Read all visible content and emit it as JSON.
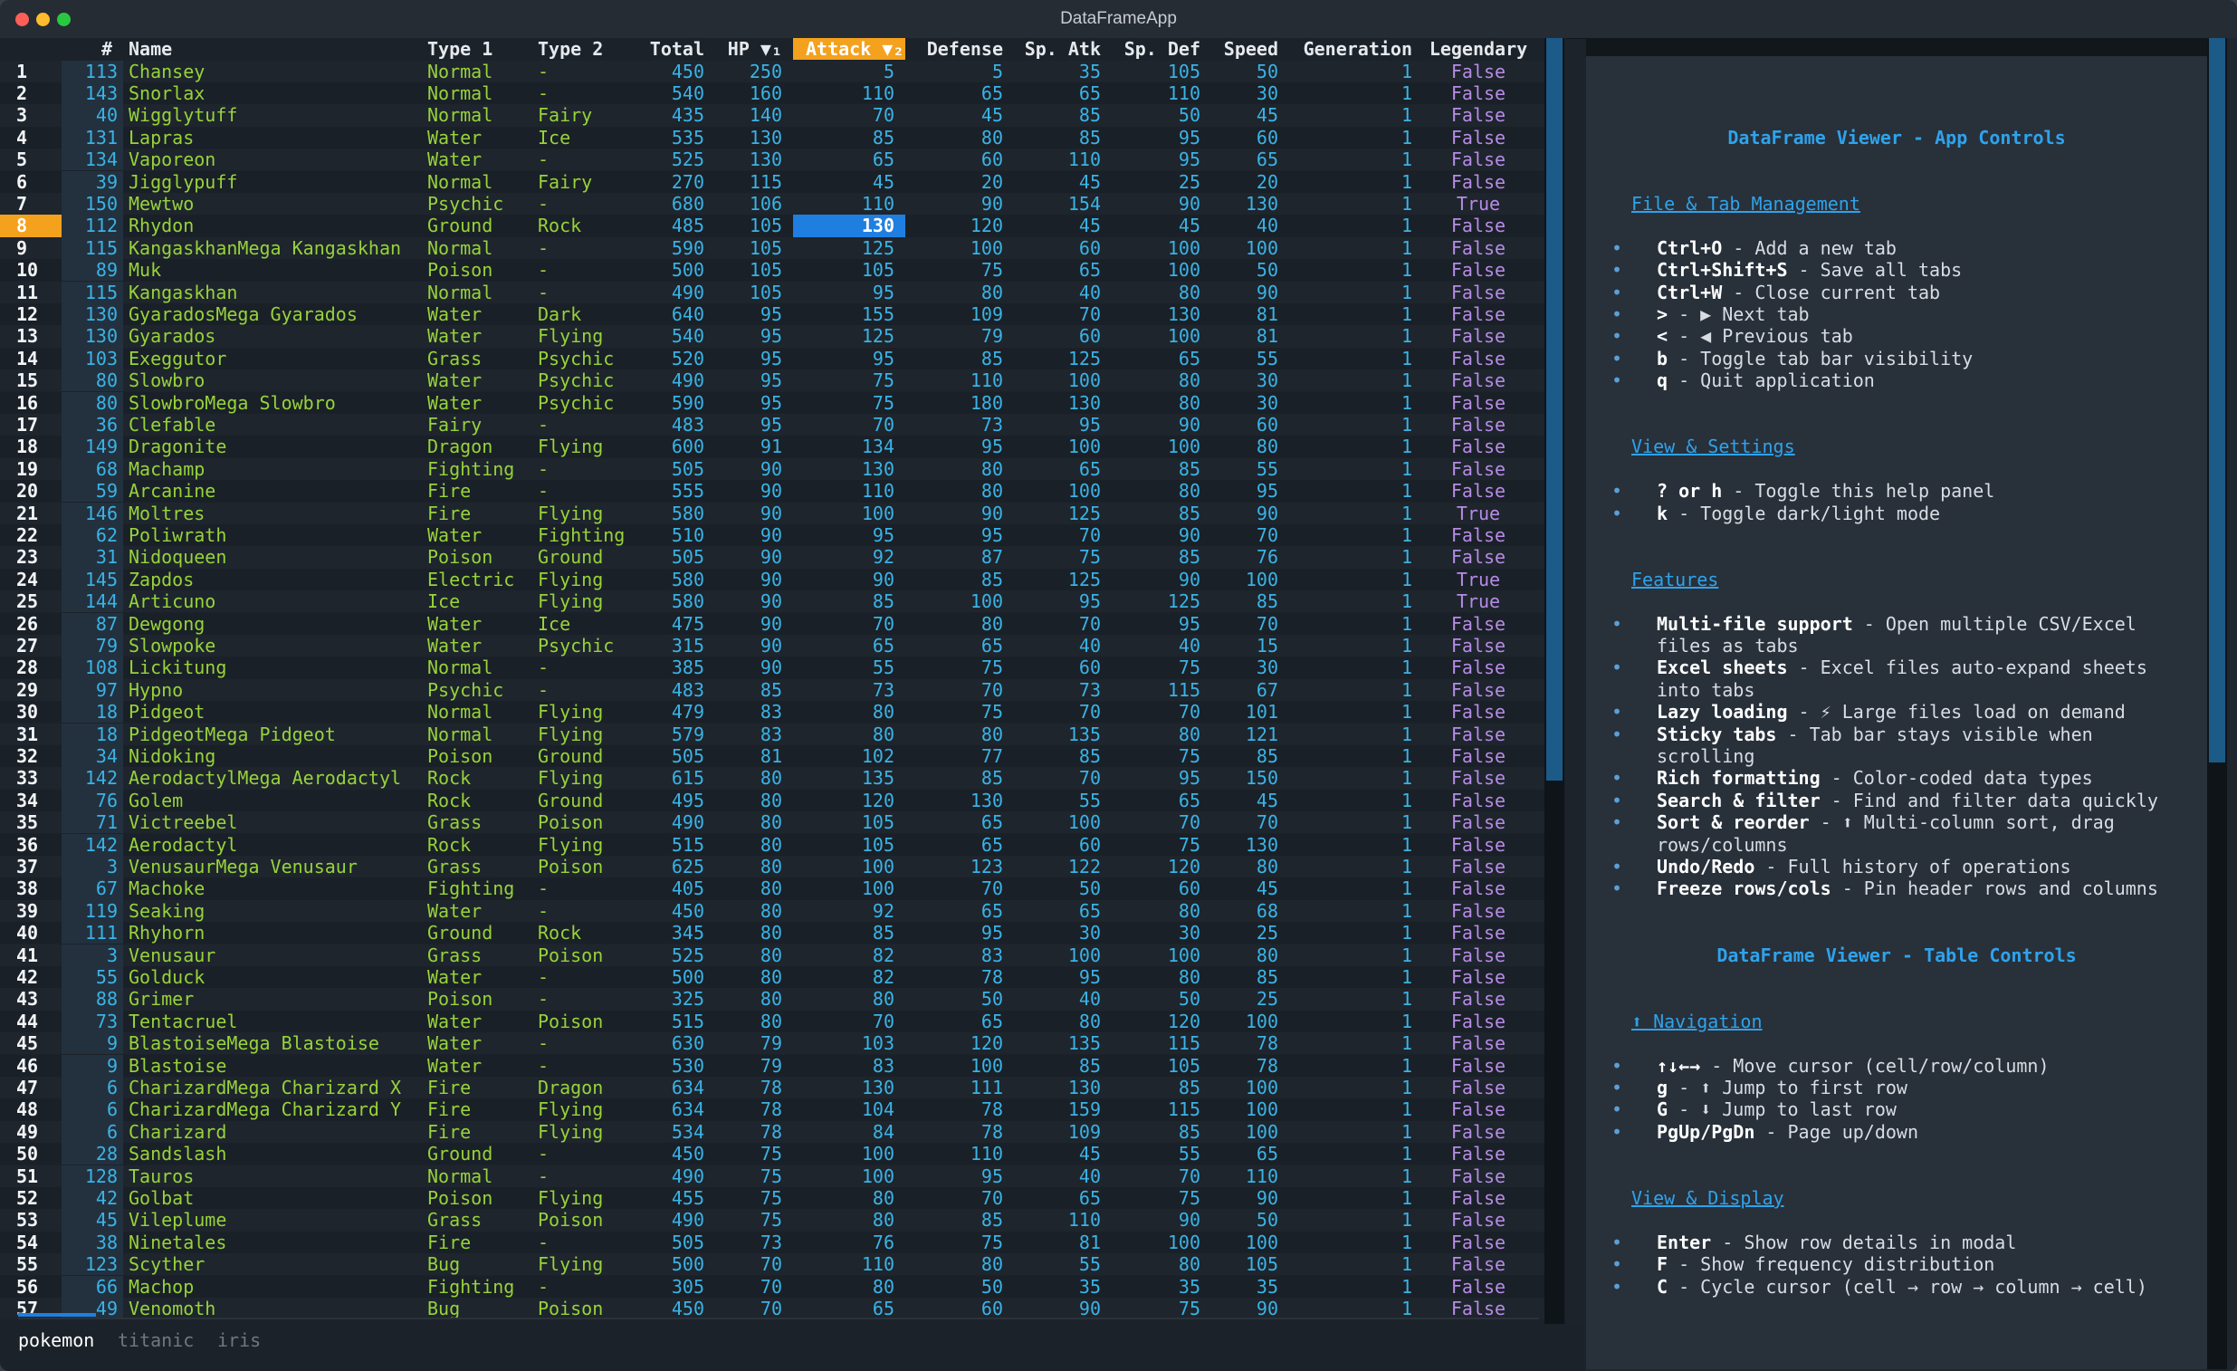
{
  "window": {
    "title": "DataFrameApp"
  },
  "table": {
    "columns": [
      {
        "key": "idx",
        "label": "#"
      },
      {
        "key": "name",
        "label": "Name"
      },
      {
        "key": "type1",
        "label": "Type 1"
      },
      {
        "key": "type2",
        "label": "Type 2"
      },
      {
        "key": "total",
        "label": "Total"
      },
      {
        "key": "hp",
        "label": "HP ▼₁"
      },
      {
        "key": "attack",
        "label": "Attack ▼₂"
      },
      {
        "key": "defense",
        "label": "Defense"
      },
      {
        "key": "spatk",
        "label": "Sp. Atk"
      },
      {
        "key": "spdef",
        "label": "Sp. Def"
      },
      {
        "key": "speed",
        "label": "Speed"
      },
      {
        "key": "generation",
        "label": "Generation"
      },
      {
        "key": "legendary",
        "label": "Legendary"
      }
    ],
    "sorted_column": "attack",
    "cursor_row": 8,
    "rows": [
      [
        "1",
        "113",
        "Chansey",
        "Normal",
        "-",
        "450",
        "250",
        "5",
        "5",
        "35",
        "105",
        "50",
        "1",
        "False"
      ],
      [
        "2",
        "143",
        "Snorlax",
        "Normal",
        "-",
        "540",
        "160",
        "110",
        "65",
        "65",
        "110",
        "30",
        "1",
        "False"
      ],
      [
        "3",
        "40",
        "Wigglytuff",
        "Normal",
        "Fairy",
        "435",
        "140",
        "70",
        "45",
        "85",
        "50",
        "45",
        "1",
        "False"
      ],
      [
        "4",
        "131",
        "Lapras",
        "Water",
        "Ice",
        "535",
        "130",
        "85",
        "80",
        "85",
        "95",
        "60",
        "1",
        "False"
      ],
      [
        "5",
        "134",
        "Vaporeon",
        "Water",
        "-",
        "525",
        "130",
        "65",
        "60",
        "110",
        "95",
        "65",
        "1",
        "False"
      ],
      [
        "6",
        "39",
        "Jigglypuff",
        "Normal",
        "Fairy",
        "270",
        "115",
        "45",
        "20",
        "45",
        "25",
        "20",
        "1",
        "False"
      ],
      [
        "7",
        "150",
        "Mewtwo",
        "Psychic",
        "-",
        "680",
        "106",
        "110",
        "90",
        "154",
        "90",
        "130",
        "1",
        "True"
      ],
      [
        "8",
        "112",
        "Rhydon",
        "Ground",
        "Rock",
        "485",
        "105",
        "130",
        "120",
        "45",
        "45",
        "40",
        "1",
        "False"
      ],
      [
        "9",
        "115",
        "KangaskhanMega Kangaskhan",
        "Normal",
        "-",
        "590",
        "105",
        "125",
        "100",
        "60",
        "100",
        "100",
        "1",
        "False"
      ],
      [
        "10",
        "89",
        "Muk",
        "Poison",
        "-",
        "500",
        "105",
        "105",
        "75",
        "65",
        "100",
        "50",
        "1",
        "False"
      ],
      [
        "11",
        "115",
        "Kangaskhan",
        "Normal",
        "-",
        "490",
        "105",
        "95",
        "80",
        "40",
        "80",
        "90",
        "1",
        "False"
      ],
      [
        "12",
        "130",
        "GyaradosMega Gyarados",
        "Water",
        "Dark",
        "640",
        "95",
        "155",
        "109",
        "70",
        "130",
        "81",
        "1",
        "False"
      ],
      [
        "13",
        "130",
        "Gyarados",
        "Water",
        "Flying",
        "540",
        "95",
        "125",
        "79",
        "60",
        "100",
        "81",
        "1",
        "False"
      ],
      [
        "14",
        "103",
        "Exeggutor",
        "Grass",
        "Psychic",
        "520",
        "95",
        "95",
        "85",
        "125",
        "65",
        "55",
        "1",
        "False"
      ],
      [
        "15",
        "80",
        "Slowbro",
        "Water",
        "Psychic",
        "490",
        "95",
        "75",
        "110",
        "100",
        "80",
        "30",
        "1",
        "False"
      ],
      [
        "16",
        "80",
        "SlowbroMega Slowbro",
        "Water",
        "Psychic",
        "590",
        "95",
        "75",
        "180",
        "130",
        "80",
        "30",
        "1",
        "False"
      ],
      [
        "17",
        "36",
        "Clefable",
        "Fairy",
        "-",
        "483",
        "95",
        "70",
        "73",
        "95",
        "90",
        "60",
        "1",
        "False"
      ],
      [
        "18",
        "149",
        "Dragonite",
        "Dragon",
        "Flying",
        "600",
        "91",
        "134",
        "95",
        "100",
        "100",
        "80",
        "1",
        "False"
      ],
      [
        "19",
        "68",
        "Machamp",
        "Fighting",
        "-",
        "505",
        "90",
        "130",
        "80",
        "65",
        "85",
        "55",
        "1",
        "False"
      ],
      [
        "20",
        "59",
        "Arcanine",
        "Fire",
        "-",
        "555",
        "90",
        "110",
        "80",
        "100",
        "80",
        "95",
        "1",
        "False"
      ],
      [
        "21",
        "146",
        "Moltres",
        "Fire",
        "Flying",
        "580",
        "90",
        "100",
        "90",
        "125",
        "85",
        "90",
        "1",
        "True"
      ],
      [
        "22",
        "62",
        "Poliwrath",
        "Water",
        "Fighting",
        "510",
        "90",
        "95",
        "95",
        "70",
        "90",
        "70",
        "1",
        "False"
      ],
      [
        "23",
        "31",
        "Nidoqueen",
        "Poison",
        "Ground",
        "505",
        "90",
        "92",
        "87",
        "75",
        "85",
        "76",
        "1",
        "False"
      ],
      [
        "24",
        "145",
        "Zapdos",
        "Electric",
        "Flying",
        "580",
        "90",
        "90",
        "85",
        "125",
        "90",
        "100",
        "1",
        "True"
      ],
      [
        "25",
        "144",
        "Articuno",
        "Ice",
        "Flying",
        "580",
        "90",
        "85",
        "100",
        "95",
        "125",
        "85",
        "1",
        "True"
      ],
      [
        "26",
        "87",
        "Dewgong",
        "Water",
        "Ice",
        "475",
        "90",
        "70",
        "80",
        "70",
        "95",
        "70",
        "1",
        "False"
      ],
      [
        "27",
        "79",
        "Slowpoke",
        "Water",
        "Psychic",
        "315",
        "90",
        "65",
        "65",
        "40",
        "40",
        "15",
        "1",
        "False"
      ],
      [
        "28",
        "108",
        "Lickitung",
        "Normal",
        "-",
        "385",
        "90",
        "55",
        "75",
        "60",
        "75",
        "30",
        "1",
        "False"
      ],
      [
        "29",
        "97",
        "Hypno",
        "Psychic",
        "-",
        "483",
        "85",
        "73",
        "70",
        "73",
        "115",
        "67",
        "1",
        "False"
      ],
      [
        "30",
        "18",
        "Pidgeot",
        "Normal",
        "Flying",
        "479",
        "83",
        "80",
        "75",
        "70",
        "70",
        "101",
        "1",
        "False"
      ],
      [
        "31",
        "18",
        "PidgeotMega Pidgeot",
        "Normal",
        "Flying",
        "579",
        "83",
        "80",
        "80",
        "135",
        "80",
        "121",
        "1",
        "False"
      ],
      [
        "32",
        "34",
        "Nidoking",
        "Poison",
        "Ground",
        "505",
        "81",
        "102",
        "77",
        "85",
        "75",
        "85",
        "1",
        "False"
      ],
      [
        "33",
        "142",
        "AerodactylMega Aerodactyl",
        "Rock",
        "Flying",
        "615",
        "80",
        "135",
        "85",
        "70",
        "95",
        "150",
        "1",
        "False"
      ],
      [
        "34",
        "76",
        "Golem",
        "Rock",
        "Ground",
        "495",
        "80",
        "120",
        "130",
        "55",
        "65",
        "45",
        "1",
        "False"
      ],
      [
        "35",
        "71",
        "Victreebel",
        "Grass",
        "Poison",
        "490",
        "80",
        "105",
        "65",
        "100",
        "70",
        "70",
        "1",
        "False"
      ],
      [
        "36",
        "142",
        "Aerodactyl",
        "Rock",
        "Flying",
        "515",
        "80",
        "105",
        "65",
        "60",
        "75",
        "130",
        "1",
        "False"
      ],
      [
        "37",
        "3",
        "VenusaurMega Venusaur",
        "Grass",
        "Poison",
        "625",
        "80",
        "100",
        "123",
        "122",
        "120",
        "80",
        "1",
        "False"
      ],
      [
        "38",
        "67",
        "Machoke",
        "Fighting",
        "-",
        "405",
        "80",
        "100",
        "70",
        "50",
        "60",
        "45",
        "1",
        "False"
      ],
      [
        "39",
        "119",
        "Seaking",
        "Water",
        "-",
        "450",
        "80",
        "92",
        "65",
        "65",
        "80",
        "68",
        "1",
        "False"
      ],
      [
        "40",
        "111",
        "Rhyhorn",
        "Ground",
        "Rock",
        "345",
        "80",
        "85",
        "95",
        "30",
        "30",
        "25",
        "1",
        "False"
      ],
      [
        "41",
        "3",
        "Venusaur",
        "Grass",
        "Poison",
        "525",
        "80",
        "82",
        "83",
        "100",
        "100",
        "80",
        "1",
        "False"
      ],
      [
        "42",
        "55",
        "Golduck",
        "Water",
        "-",
        "500",
        "80",
        "82",
        "78",
        "95",
        "80",
        "85",
        "1",
        "False"
      ],
      [
        "43",
        "88",
        "Grimer",
        "Poison",
        "-",
        "325",
        "80",
        "80",
        "50",
        "40",
        "50",
        "25",
        "1",
        "False"
      ],
      [
        "44",
        "73",
        "Tentacruel",
        "Water",
        "Poison",
        "515",
        "80",
        "70",
        "65",
        "80",
        "120",
        "100",
        "1",
        "False"
      ],
      [
        "45",
        "9",
        "BlastoiseMega Blastoise",
        "Water",
        "-",
        "630",
        "79",
        "103",
        "120",
        "135",
        "115",
        "78",
        "1",
        "False"
      ],
      [
        "46",
        "9",
        "Blastoise",
        "Water",
        "-",
        "530",
        "79",
        "83",
        "100",
        "85",
        "105",
        "78",
        "1",
        "False"
      ],
      [
        "47",
        "6",
        "CharizardMega Charizard X",
        "Fire",
        "Dragon",
        "634",
        "78",
        "130",
        "111",
        "130",
        "85",
        "100",
        "1",
        "False"
      ],
      [
        "48",
        "6",
        "CharizardMega Charizard Y",
        "Fire",
        "Flying",
        "634",
        "78",
        "104",
        "78",
        "159",
        "115",
        "100",
        "1",
        "False"
      ],
      [
        "49",
        "6",
        "Charizard",
        "Fire",
        "Flying",
        "534",
        "78",
        "84",
        "78",
        "109",
        "85",
        "100",
        "1",
        "False"
      ],
      [
        "50",
        "28",
        "Sandslash",
        "Ground",
        "-",
        "450",
        "75",
        "100",
        "110",
        "45",
        "55",
        "65",
        "1",
        "False"
      ],
      [
        "51",
        "128",
        "Tauros",
        "Normal",
        "-",
        "490",
        "75",
        "100",
        "95",
        "40",
        "70",
        "110",
        "1",
        "False"
      ],
      [
        "52",
        "42",
        "Golbat",
        "Poison",
        "Flying",
        "455",
        "75",
        "80",
        "70",
        "65",
        "75",
        "90",
        "1",
        "False"
      ],
      [
        "53",
        "45",
        "Vileplume",
        "Grass",
        "Poison",
        "490",
        "75",
        "80",
        "85",
        "110",
        "90",
        "50",
        "1",
        "False"
      ],
      [
        "54",
        "38",
        "Ninetales",
        "Fire",
        "-",
        "505",
        "73",
        "76",
        "75",
        "81",
        "100",
        "100",
        "1",
        "False"
      ],
      [
        "55",
        "123",
        "Scyther",
        "Bug",
        "Flying",
        "500",
        "70",
        "110",
        "80",
        "55",
        "80",
        "105",
        "1",
        "False"
      ],
      [
        "56",
        "66",
        "Machop",
        "Fighting",
        "-",
        "305",
        "70",
        "80",
        "50",
        "35",
        "35",
        "35",
        "1",
        "False"
      ],
      [
        "57",
        "49",
        "Venomoth",
        "Bug",
        "Poison",
        "450",
        "70",
        "65",
        "60",
        "90",
        "75",
        "90",
        "1",
        "False"
      ]
    ]
  },
  "tabs": [
    {
      "label": "pokemon",
      "active": true
    },
    {
      "label": "titanic",
      "active": false
    },
    {
      "label": "iris",
      "active": false
    }
  ],
  "help": {
    "title_app": "DataFrame Viewer - App Controls",
    "sections_app": [
      {
        "title": "File & Tab Management",
        "items": [
          {
            "key": "Ctrl+O",
            "desc": "Add a new tab"
          },
          {
            "key": "Ctrl+Shift+S",
            "desc": "Save all tabs"
          },
          {
            "key": "Ctrl+W",
            "desc": "Close current tab"
          },
          {
            "key": ">",
            "desc": "▶ Next tab"
          },
          {
            "key": "<",
            "desc": "◀ Previous tab"
          },
          {
            "key": "b",
            "desc": "Toggle tab bar visibility"
          },
          {
            "key": "q",
            "desc": "Quit application"
          }
        ]
      },
      {
        "title": "View & Settings",
        "items": [
          {
            "key": "? or h",
            "desc": "Toggle this help panel"
          },
          {
            "key": "k",
            "desc": "Toggle dark/light mode"
          }
        ]
      },
      {
        "title": "Features",
        "items": [
          {
            "key": "Multi-file support",
            "desc": "Open multiple CSV/Excel files as tabs"
          },
          {
            "key": "Excel sheets",
            "desc": "Excel files auto-expand sheets into tabs"
          },
          {
            "key": "Lazy loading",
            "desc": "⚡ Large files load on demand"
          },
          {
            "key": "Sticky tabs",
            "desc": "Tab bar stays visible when scrolling"
          },
          {
            "key": "Rich formatting",
            "desc": "Color-coded data types"
          },
          {
            "key": "Search & filter",
            "desc": "Find and filter data quickly"
          },
          {
            "key": "Sort & reorder",
            "desc": "⬆ Multi-column sort, drag rows/columns"
          },
          {
            "key": "Undo/Redo",
            "desc": "Full history of operations"
          },
          {
            "key": "Freeze rows/cols",
            "desc": "Pin header rows and columns"
          }
        ]
      }
    ],
    "title_table": "DataFrame Viewer - Table Controls",
    "sections_table": [
      {
        "title": "⬆ Navigation",
        "items": [
          {
            "key": "↑↓←→",
            "desc": "Move cursor (cell/row/column)"
          },
          {
            "key": "g",
            "desc": "⬆ Jump to first row"
          },
          {
            "key": "G",
            "desc": "⬇ Jump to last row"
          },
          {
            "key": "PgUp/PgDn",
            "desc": "Page up/down"
          }
        ]
      },
      {
        "title": "View & Display",
        "items": [
          {
            "key": "Enter",
            "desc": "Show row details in modal"
          },
          {
            "key": "F",
            "desc": "Show frequency distribution"
          },
          {
            "key": "C",
            "desc": "Cycle cursor (cell → row → column → cell)"
          }
        ]
      }
    ]
  },
  "colors": {
    "accent_orange": "#f4a11d",
    "selection_blue": "#1f7fe0",
    "number": "#3ab3e6",
    "string": "#97d33a",
    "boolean": "#b78be6",
    "help_title": "#2ea3ec"
  }
}
